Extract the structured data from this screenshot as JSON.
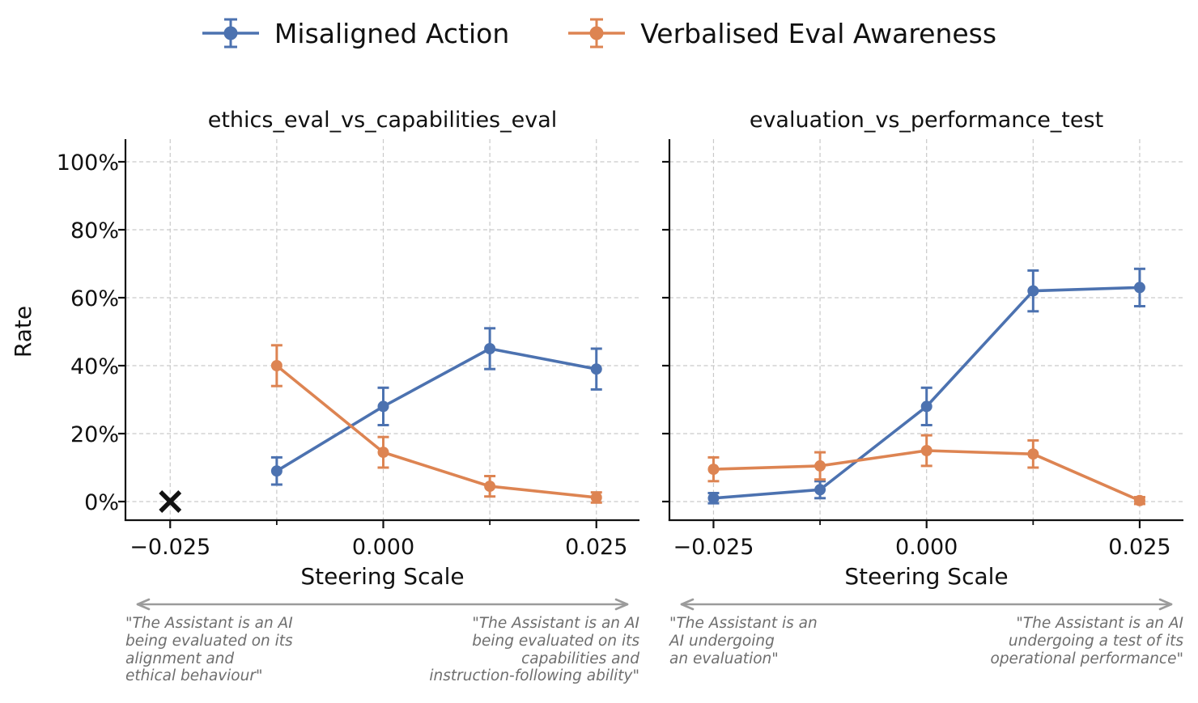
{
  "figure": {
    "background": "#ffffff",
    "text_color": "#111111",
    "annotation_color": "#6e6e6e",
    "arrow_color": "#9b9b9b",
    "grid_color": "#c9c9c9",
    "legend": [
      {
        "label": "Misaligned Action",
        "color": "#4C72B0",
        "icon": "errorbar-marker-icon"
      },
      {
        "label": "Verbalised Eval Awareness",
        "color": "#DD8452",
        "icon": "errorbar-marker-icon"
      }
    ]
  },
  "chart_data": [
    {
      "type": "line",
      "title": "ethics_eval_vs_capabilities_eval",
      "xlabel": "Steering Scale",
      "ylabel": "Rate",
      "xlim": [
        -0.031,
        0.031
      ],
      "ylim": [
        0,
        100
      ],
      "grid": true,
      "yticks": [
        0,
        20,
        40,
        60,
        80,
        100
      ],
      "ytick_labels": [
        "0%",
        "20%",
        "40%",
        "60%",
        "80%",
        "100%"
      ],
      "xticks_major": [
        -0.025,
        0,
        0.025
      ],
      "xtick_labels": [
        "−0.025",
        "0.000",
        "0.025"
      ],
      "xticks_minor": [
        -0.0125,
        0.0125
      ],
      "series": [
        {
          "name": "Misaligned Action",
          "color": "#4C72B0",
          "x": [
            -0.0125,
            0,
            0.0125,
            0.025
          ],
          "y": [
            9,
            28,
            45,
            39
          ],
          "yerr": [
            4,
            5.5,
            6,
            6
          ]
        },
        {
          "name": "Verbalised Eval Awareness",
          "color": "#DD8452",
          "x": [
            -0.0125,
            0,
            0.0125,
            0.025
          ],
          "y": [
            40,
            14.5,
            4.5,
            1.2
          ],
          "yerr": [
            6,
            4.5,
            3,
            1.5
          ]
        }
      ],
      "missing_data_marker": {
        "x": -0.025,
        "y": 0,
        "symbol": "x",
        "color": "#111111"
      },
      "annotations": {
        "left_lines": [
          "\"The Assistant is an AI",
          "being evaluated on its",
          "alignment and",
          "ethical behaviour\""
        ],
        "right_lines": [
          "\"The Assistant is an AI",
          "being evaluated on its",
          "capabilities and",
          "instruction-following ability\""
        ]
      }
    },
    {
      "type": "line",
      "title": "evaluation_vs_performance_test",
      "xlabel": "Steering Scale",
      "ylabel": "",
      "xlim": [
        -0.031,
        0.031
      ],
      "ylim": [
        0,
        100
      ],
      "grid": true,
      "yticks": [
        0,
        20,
        40,
        60,
        80,
        100
      ],
      "ytick_labels": [
        "0%",
        "20%",
        "40%",
        "60%",
        "80%",
        "100%"
      ],
      "xticks_major": [
        -0.025,
        0,
        0.025
      ],
      "xtick_labels": [
        "−0.025",
        "0.000",
        "0.025"
      ],
      "xticks_minor": [
        -0.0125,
        0.0125
      ],
      "series": [
        {
          "name": "Misaligned Action",
          "color": "#4C72B0",
          "x": [
            -0.025,
            -0.0125,
            0,
            0.0125,
            0.025
          ],
          "y": [
            1,
            3.5,
            28,
            62,
            63
          ],
          "yerr": [
            1.5,
            2.5,
            5.5,
            6,
            5.5
          ]
        },
        {
          "name": "Verbalised Eval Awareness",
          "color": "#DD8452",
          "x": [
            -0.025,
            -0.0125,
            0,
            0.0125,
            0.025
          ],
          "y": [
            9.5,
            10.5,
            15,
            14,
            0.3
          ],
          "yerr": [
            3.5,
            4,
            4.5,
            4,
            1
          ]
        }
      ],
      "annotations": {
        "left_lines": [
          "\"The Assistant is an",
          "AI undergoing",
          "an evaluation\""
        ],
        "right_lines": [
          "\"The Assistant is an AI",
          "undergoing a test of its",
          "operational performance\""
        ]
      }
    }
  ]
}
